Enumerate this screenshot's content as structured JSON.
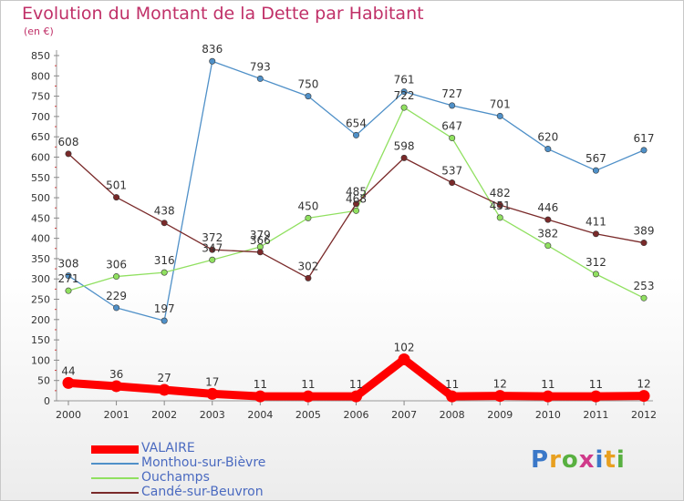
{
  "header": {
    "title": "Evolution du Montant de la Dette par Habitant",
    "subtitle": "(en €)"
  },
  "logo": {
    "text": "Proxiti"
  },
  "chart_data": {
    "type": "line",
    "title": "Evolution du Montant de la Dette par Habitant",
    "ylabel": "(en €)",
    "xlabel": "",
    "x": [
      "2000",
      "2001",
      "2002",
      "2003",
      "2004",
      "2005",
      "2006",
      "2007",
      "2008",
      "2009",
      "2010",
      "2011",
      "2012"
    ],
    "ylim": [
      0,
      850
    ],
    "yticks": [
      0,
      50,
      100,
      150,
      200,
      250,
      300,
      350,
      400,
      450,
      500,
      550,
      600,
      650,
      700,
      750,
      800,
      850
    ],
    "grid": false,
    "legend_position": "bottom-left",
    "series": [
      {
        "name": "VALAIRE",
        "color": "#ff0000",
        "values": [
          44,
          36,
          27,
          17,
          11,
          11,
          11,
          102,
          11,
          12,
          11,
          11,
          12
        ]
      },
      {
        "name": "Monthou-sur-Bièvre",
        "color": "#4f90c8",
        "values": [
          308,
          229,
          197,
          836,
          793,
          750,
          654,
          761,
          727,
          701,
          620,
          567,
          617
        ]
      },
      {
        "name": "Ouchamps",
        "color": "#90e060",
        "values": [
          271,
          306,
          316,
          347,
          379,
          450,
          468,
          722,
          647,
          451,
          382,
          312,
          253
        ]
      },
      {
        "name": "Candé-sur-Beuvron",
        "color": "#7a2a2a",
        "values": [
          608,
          501,
          438,
          372,
          366,
          302,
          485,
          598,
          537,
          482,
          446,
          411,
          389
        ]
      }
    ],
    "data_labels": {
      "VALAIRE": [
        "44",
        "36",
        "27",
        "17",
        "11",
        "11",
        "11",
        "102",
        "11",
        "12",
        "11",
        "11",
        "12"
      ],
      "Monthou-sur-Bièvre": [
        "308",
        "229",
        "197",
        "836",
        "793",
        "750",
        "654",
        "761",
        "727",
        "701",
        "620",
        "567",
        "617"
      ],
      "Ouchamps": [
        "271",
        "306",
        "316",
        "347",
        "379",
        "450",
        "468",
        "722",
        "647",
        "451",
        "382",
        "312",
        "253"
      ],
      "Candé-sur-Beuvron": [
        "608",
        "501",
        "438",
        "372",
        "366",
        "302",
        "485",
        "598",
        "537",
        "482",
        "446",
        "411",
        "389"
      ]
    }
  }
}
